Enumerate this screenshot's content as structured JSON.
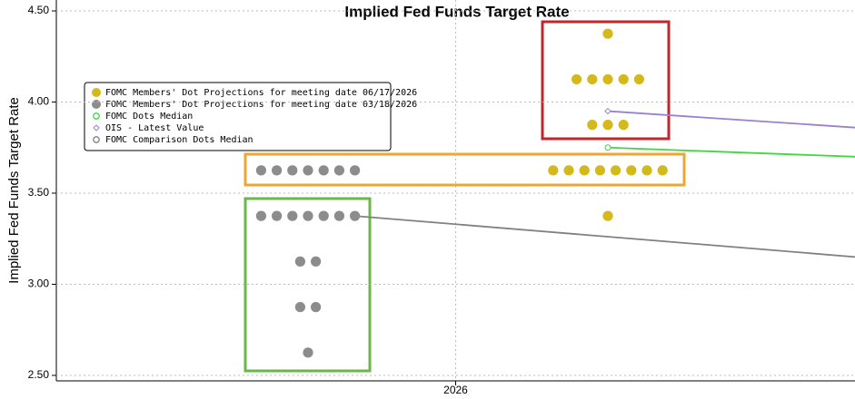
{
  "chart_data": {
    "type": "dot",
    "title": "Implied Fed Funds Target Rate",
    "y_label": "Implied Fed Funds Target Rate",
    "ylim": [
      2.46,
      4.56
    ],
    "yticks": [
      {
        "value": 2.5,
        "label": "2.50"
      },
      {
        "value": 3.0,
        "label": "3.00"
      },
      {
        "value": 3.5,
        "label": "3.50"
      },
      {
        "value": 4.0,
        "label": "4.00"
      },
      {
        "value": 4.5,
        "label": "4.50"
      }
    ],
    "xlim": [
      2025.5,
      2026.5
    ],
    "xticks": [
      2026
    ],
    "grid": true,
    "legend": "upper left",
    "series": [
      {
        "name": "FOMC Members' Dot Projections for meeting date 06/17/2026",
        "color": "#d4b91c",
        "kind": "dots",
        "values": [
          4.375,
          4.125,
          4.125,
          4.125,
          4.125,
          4.125,
          3.875,
          3.875,
          3.875,
          3.625,
          3.625,
          3.625,
          3.625,
          3.625,
          3.625,
          3.625,
          3.625,
          3.375
        ]
      },
      {
        "name": "FOMC Members' Dot Projections for meeting date 03/18/2026",
        "color": "#8c8c8c",
        "kind": "dots",
        "values": [
          3.625,
          3.625,
          3.625,
          3.625,
          3.625,
          3.625,
          3.625,
          3.375,
          3.375,
          3.375,
          3.375,
          3.375,
          3.375,
          3.375,
          3.125,
          3.125,
          2.875,
          2.875,
          2.625
        ]
      },
      {
        "name": "FOMC Dots Median",
        "color": "#3fd83f",
        "kind": "line",
        "values": [
          3.75,
          3.7
        ]
      },
      {
        "name": "OIS - Latest Value",
        "color": "#9b7fd0",
        "kind": "line",
        "values": [
          3.95,
          3.86
        ]
      },
      {
        "name": "FOMC Comparison Dots Median",
        "color": "#808080",
        "kind": "line",
        "values": [
          3.375,
          3.15
        ]
      }
    ]
  }
}
